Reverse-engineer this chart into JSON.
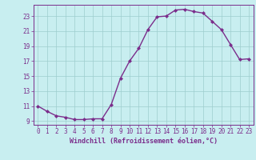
{
  "x": [
    0,
    1,
    2,
    3,
    4,
    5,
    6,
    7,
    8,
    9,
    10,
    11,
    12,
    13,
    14,
    15,
    16,
    17,
    18,
    19,
    20,
    21,
    22,
    23
  ],
  "y": [
    11.0,
    10.3,
    9.7,
    9.5,
    9.2,
    9.2,
    9.3,
    9.3,
    11.2,
    14.7,
    17.0,
    18.7,
    21.2,
    22.9,
    23.0,
    23.8,
    23.9,
    23.6,
    23.4,
    22.3,
    21.2,
    19.2,
    17.2,
    17.3
  ],
  "line_color": "#7b2d8b",
  "marker": "D",
  "marker_size": 2.0,
  "background_color": "#c8eef0",
  "grid_color": "#9ecece",
  "xlabel": "Windchill (Refroidissement éolien,°C)",
  "ylabel": "",
  "xlim": [
    -0.5,
    23.5
  ],
  "ylim": [
    8.5,
    24.5
  ],
  "yticks": [
    9,
    11,
    13,
    15,
    17,
    19,
    21,
    23
  ],
  "xticks": [
    0,
    1,
    2,
    3,
    4,
    5,
    6,
    7,
    8,
    9,
    10,
    11,
    12,
    13,
    14,
    15,
    16,
    17,
    18,
    19,
    20,
    21,
    22,
    23
  ],
  "tick_color": "#7b2d8b",
  "tick_fontsize": 5.5,
  "xlabel_fontsize": 6.0,
  "line_width": 1.0
}
